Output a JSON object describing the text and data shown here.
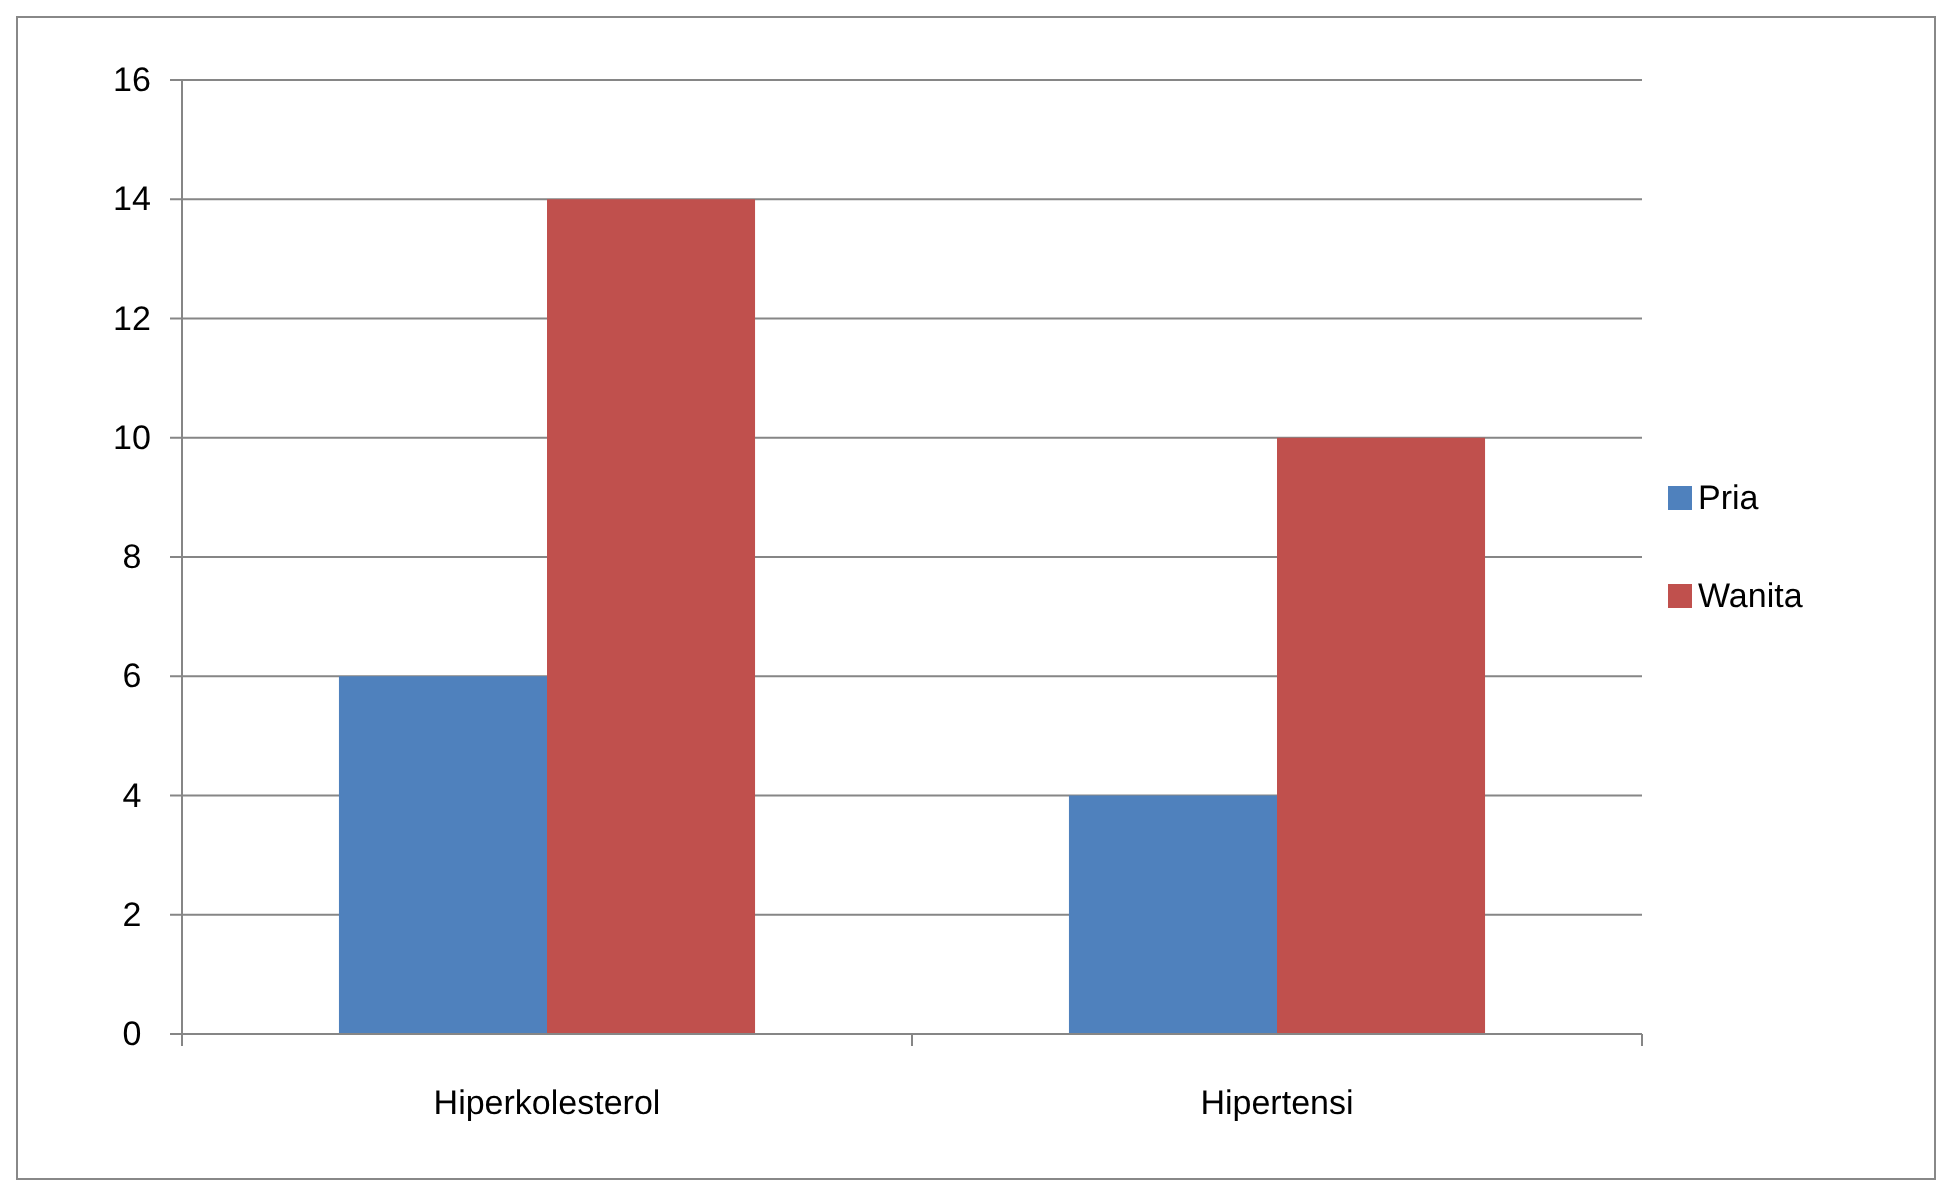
{
  "chart_data": {
    "type": "bar",
    "categories": [
      "Hiperkolesterol",
      "Hipertensi"
    ],
    "series": [
      {
        "name": "Pria",
        "color": "#4f81bd",
        "values": [
          6,
          4
        ]
      },
      {
        "name": "Wanita",
        "color": "#c0504d",
        "values": [
          14,
          10
        ]
      }
    ],
    "ylim": [
      0,
      16
    ],
    "yticks": [
      0,
      2,
      4,
      6,
      8,
      10,
      12,
      14,
      16
    ],
    "grid": "y",
    "legend": "right"
  }
}
